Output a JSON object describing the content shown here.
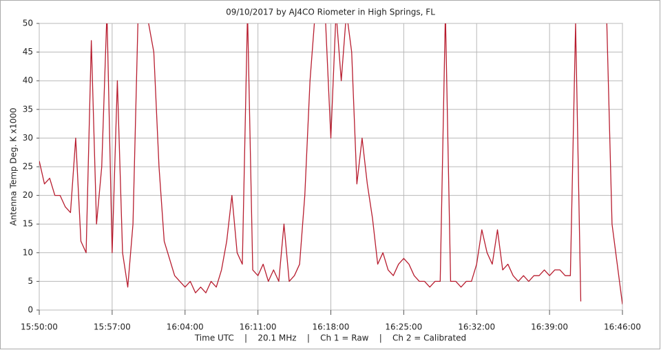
{
  "chart_data": {
    "type": "line",
    "title": "09/10/2017  by  AJ4CO Riometer  in  High Springs, FL",
    "y_label": "Antenna Temp Deg. K x1000",
    "footer": "Time UTC    |    20.1 MHz    |    Ch 1 = Raw    |    Ch 2 = Calibrated",
    "x": [
      "15:50:00",
      "15:50:30",
      "15:51:00",
      "15:51:30",
      "15:52:00",
      "15:52:30",
      "15:53:00",
      "15:53:30",
      "15:54:00",
      "15:54:30",
      "15:55:00",
      "15:55:30",
      "15:56:00",
      "15:56:30",
      "15:57:00",
      "15:57:30",
      "15:58:00",
      "15:58:30",
      "15:59:00",
      "15:59:30",
      "16:00:00",
      "16:00:30",
      "16:01:00",
      "16:01:30",
      "16:02:00",
      "16:02:30",
      "16:03:00",
      "16:03:30",
      "16:04:00",
      "16:04:30",
      "16:05:00",
      "16:05:30",
      "16:06:00",
      "16:06:30",
      "16:07:00",
      "16:07:30",
      "16:08:00",
      "16:08:30",
      "16:09:00",
      "16:09:30",
      "16:10:00",
      "16:10:30",
      "16:11:00",
      "16:11:30",
      "16:12:00",
      "16:12:30",
      "16:13:00",
      "16:13:30",
      "16:14:00",
      "16:14:30",
      "16:15:00",
      "16:15:30",
      "16:16:00",
      "16:16:30",
      "16:17:00",
      "16:17:30",
      "16:18:00",
      "16:18:30",
      "16:19:00",
      "16:19:30",
      "16:20:00",
      "16:20:30",
      "16:21:00",
      "16:21:30",
      "16:22:00",
      "16:22:30",
      "16:23:00",
      "16:23:30",
      "16:24:00",
      "16:24:30",
      "16:25:00",
      "16:25:30",
      "16:26:00",
      "16:26:30",
      "16:27:00",
      "16:27:30",
      "16:28:00",
      "16:28:30",
      "16:29:00",
      "16:29:30",
      "16:30:00",
      "16:30:30",
      "16:31:00",
      "16:31:30",
      "16:32:00",
      "16:32:30",
      "16:33:00",
      "16:33:30",
      "16:34:00",
      "16:34:30",
      "16:35:00",
      "16:35:30",
      "16:36:00",
      "16:36:30",
      "16:37:00",
      "16:37:30",
      "16:38:00",
      "16:38:30",
      "16:39:00",
      "16:39:30",
      "16:40:00",
      "16:40:30",
      "16:41:00",
      "16:41:30",
      "16:42:00",
      "16:42:30",
      "16:43:00",
      "16:43:30",
      "16:44:00",
      "16:44:30",
      "16:45:00",
      "16:45:30",
      "16:46:00"
    ],
    "series": [
      {
        "name": "Ch 1",
        "color": "#b71c2e",
        "values": [
          26,
          22,
          23,
          20,
          20,
          18,
          17,
          30,
          12,
          10,
          47,
          15,
          25,
          52,
          10,
          40,
          10,
          4,
          15,
          52,
          52,
          50,
          45,
          25,
          12,
          9,
          6,
          5,
          4,
          5,
          3,
          4,
          3,
          5,
          4,
          7,
          12,
          20,
          10,
          8,
          52,
          7,
          6,
          8,
          5,
          7,
          5,
          15,
          5,
          6,
          8,
          20,
          40,
          52,
          52,
          50,
          30,
          52,
          40,
          52,
          45,
          22,
          30,
          22,
          16,
          8,
          10,
          7,
          6,
          8,
          9,
          8,
          6,
          5,
          5,
          4,
          5,
          5,
          52,
          5,
          5,
          4,
          5,
          5,
          8,
          14,
          10,
          8,
          14,
          7,
          8,
          6,
          5,
          6,
          5,
          6,
          6,
          7,
          6,
          7,
          7,
          6,
          6,
          50,
          1.5,
          null,
          null,
          null,
          null,
          50,
          15,
          8,
          1
        ]
      }
    ],
    "xlim": [
      "15:50:00",
      "16:46:00"
    ],
    "xticks": [
      "15:50:00",
      "15:57:00",
      "16:04:00",
      "16:11:00",
      "16:18:00",
      "16:25:00",
      "16:32:00",
      "16:39:00",
      "16:46:00"
    ],
    "ylim": [
      0,
      50
    ],
    "yticks": [
      0,
      5,
      10,
      15,
      20,
      25,
      30,
      35,
      40,
      45,
      50
    ],
    "grid": true
  }
}
